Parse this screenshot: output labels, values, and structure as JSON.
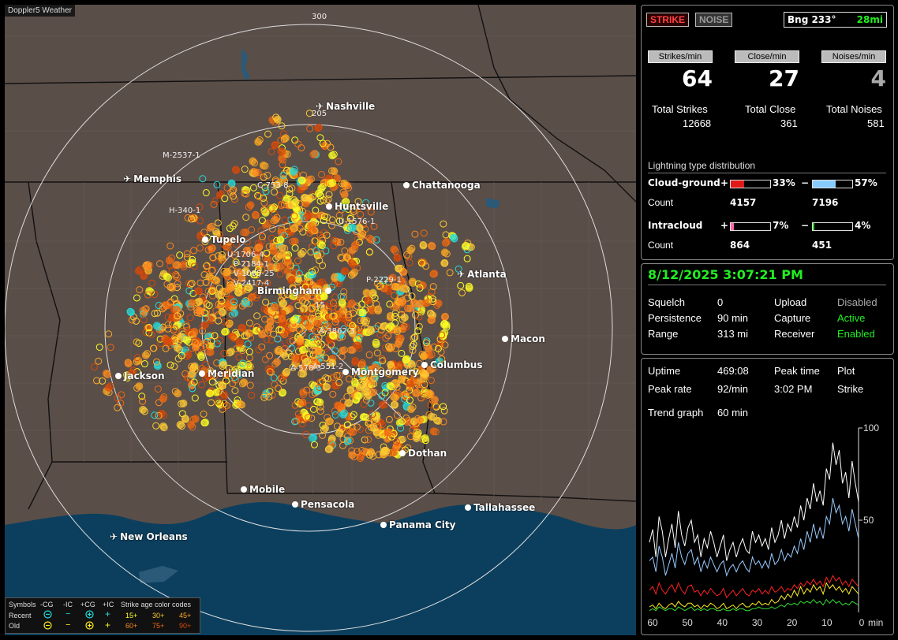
{
  "window_title": "Doppler5 Weather",
  "cities": [
    {
      "name": "Nashville",
      "type": "airport"
    },
    {
      "name": "Memphis",
      "type": "airport"
    },
    {
      "name": "Chattanooga",
      "type": "city"
    },
    {
      "name": "Huntsville",
      "type": "city"
    },
    {
      "name": "Tupelo",
      "type": "city"
    },
    {
      "name": "Atlanta",
      "type": "airport"
    },
    {
      "name": "Birmingham",
      "type": "city"
    },
    {
      "name": "Macon",
      "type": "city"
    },
    {
      "name": "Jackson",
      "type": "city"
    },
    {
      "name": "Meridian",
      "type": "city"
    },
    {
      "name": "Montgomery",
      "type": "city"
    },
    {
      "name": "Columbus",
      "type": "city"
    },
    {
      "name": "Dothan",
      "type": "city"
    },
    {
      "name": "Mobile",
      "type": "city"
    },
    {
      "name": "Pensacola",
      "type": "city"
    },
    {
      "name": "Tallahassee",
      "type": "city"
    },
    {
      "name": "Panama City",
      "type": "city"
    },
    {
      "name": "New Orleans",
      "type": "airport"
    }
  ],
  "ring_labels": [
    "300",
    "205",
    "15"
  ],
  "storm_labels": [
    "M-2537-1",
    "H-340-1",
    "C-753-8",
    "U-1576-1",
    "U-1706-4",
    "P-2184-1",
    "V-1085-25",
    "V-2417-4",
    "P-2229-1",
    "A-3862-3",
    "A-578-3",
    "A-551-2"
  ],
  "legend": {
    "symbols_label": "Symbols",
    "col_heads": [
      "-CG",
      "-IC",
      "+CG",
      "+IC"
    ],
    "age_label": "Strike age color codes",
    "recent_label": "Recent",
    "old_label": "Old",
    "recent_ages": [
      "15+",
      "30+",
      "45+"
    ],
    "old_ages": [
      "60+",
      "75+",
      "90+"
    ],
    "glyph_minus": "−",
    "glyph_plus": "+",
    "colors": {
      "c15": "#ffff22",
      "c30": "#ffcc33",
      "c45": "#ffaa22",
      "c60": "#ff8a1e",
      "c75": "#f06a10",
      "c90": "#d94a08",
      "recent_sym": "#22dddd",
      "old_sym": "#ffee22"
    }
  },
  "top": {
    "strike_btn": "STRIKE",
    "noise_btn": "NOISE",
    "bearing_label": "Bng 233°",
    "distance": "28mi",
    "strikes_head": "Strikes/min",
    "close_head": "Close/min",
    "noises_head": "Noises/min",
    "strikes_val": "64",
    "close_val": "27",
    "noises_val": "4",
    "total_strikes_label": "Total Strikes",
    "total_close_label": "Total Close",
    "total_noises_label": "Total Noises",
    "total_strikes": "12668",
    "total_close": "361",
    "total_noises": "581",
    "dist_title": "Lightning type distribution",
    "cg_label": "Cloud-ground",
    "ic_label": "Intracloud",
    "count_label": "Count",
    "plus": "+",
    "minus": "−",
    "cg_pos_pct": "33%",
    "cg_neg_pct": "57%",
    "cg_pos_count": "4157",
    "cg_neg_count": "7196",
    "ic_pos_pct": "7%",
    "ic_neg_pct": "4%",
    "ic_pos_count": "864",
    "ic_neg_count": "451",
    "cg_pos_fill": 0.33,
    "cg_neg_fill": 0.57,
    "ic_pos_fill": 0.07,
    "ic_neg_fill": 0.04
  },
  "status": {
    "datetime": "8/12/2025 3:07:21 PM",
    "squelch_label": "Squelch",
    "squelch": "0",
    "persist_label": "Persistence",
    "persist": "90 min",
    "range_label": "Range",
    "range": "313 mi",
    "upload_label": "Upload",
    "upload": "Disabled",
    "capture_label": "Capture",
    "capture": "Active",
    "receiver_label": "Receiver",
    "receiver": "Enabled"
  },
  "stats": {
    "uptime_label": "Uptime",
    "uptime": "469:08",
    "peaktime_label": "Peak time",
    "peaktime": "3:02 PM",
    "plot_label": "Plot",
    "plot": "Strike",
    "peakrate_label": "Peak rate",
    "peakrate": "92/min",
    "trend_label": "Trend graph",
    "trend": "60 min"
  },
  "chart_data": {
    "type": "line",
    "title": "",
    "xlabel": "min",
    "ylabel": "",
    "x_ticks": [
      "60",
      "50",
      "40",
      "30",
      "20",
      "10",
      "0"
    ],
    "y_ticks": [
      "100",
      "50"
    ],
    "xlim": [
      60,
      0
    ],
    "ylim": [
      0,
      100
    ],
    "series": [
      {
        "color": "#ffffff",
        "values": [
          38,
          45,
          30,
          52,
          44,
          30,
          40,
          48,
          35,
          55,
          42,
          36,
          46,
          50,
          38,
          42,
          30,
          40,
          35,
          44,
          38,
          30,
          36,
          42,
          28,
          34,
          38,
          30,
          36,
          40,
          34,
          32,
          44,
          38,
          42,
          36,
          40,
          34,
          46,
          38,
          42,
          50,
          40,
          48,
          44,
          52,
          46,
          58,
          50,
          62,
          56,
          70,
          60,
          66,
          58,
          78,
          72,
          92,
          80,
          88,
          70,
          76,
          62,
          82,
          70,
          60
        ]
      },
      {
        "color": "#99ccff",
        "values": [
          28,
          30,
          22,
          36,
          30,
          20,
          26,
          32,
          24,
          38,
          30,
          26,
          32,
          34,
          26,
          30,
          22,
          28,
          24,
          30,
          26,
          22,
          26,
          28,
          20,
          24,
          26,
          22,
          26,
          28,
          24,
          22,
          30,
          26,
          28,
          24,
          28,
          24,
          32,
          26,
          28,
          34,
          28,
          32,
          30,
          36,
          32,
          40,
          34,
          44,
          38,
          48,
          40,
          46,
          40,
          52,
          48,
          62,
          54,
          58,
          48,
          52,
          44,
          56,
          48,
          40
        ]
      },
      {
        "color": "#ff2222",
        "values": [
          12,
          14,
          10,
          16,
          12,
          10,
          13,
          15,
          11,
          16,
          12,
          10,
          14,
          15,
          11,
          12,
          9,
          12,
          10,
          13,
          11,
          9,
          10,
          13,
          8,
          10,
          12,
          9,
          11,
          13,
          10,
          9,
          12,
          11,
          13,
          10,
          12,
          10,
          14,
          11,
          12,
          14,
          11,
          13,
          12,
          15,
          13,
          16,
          14,
          17,
          15,
          18,
          15,
          17,
          14,
          19,
          16,
          20,
          17,
          19,
          15,
          17,
          14,
          18,
          16,
          14
        ]
      },
      {
        "color": "#ffee22",
        "values": [
          3,
          4,
          2,
          5,
          3,
          2,
          4,
          5,
          3,
          6,
          4,
          3,
          5,
          5,
          3,
          4,
          2,
          4,
          3,
          5,
          4,
          2,
          3,
          5,
          2,
          3,
          4,
          2,
          4,
          5,
          3,
          3,
          5,
          4,
          6,
          4,
          5,
          4,
          7,
          5,
          6,
          9,
          7,
          10,
          8,
          12,
          9,
          14,
          10,
          13,
          11,
          15,
          12,
          14,
          10,
          16,
          13,
          15,
          12,
          14,
          11,
          13,
          10,
          14,
          12,
          10
        ]
      },
      {
        "color": "#33dd33",
        "values": [
          1,
          2,
          1,
          3,
          2,
          1,
          2,
          2,
          1,
          3,
          2,
          1,
          2,
          3,
          1,
          2,
          1,
          2,
          1,
          2,
          2,
          1,
          1,
          2,
          1,
          1,
          2,
          1,
          2,
          2,
          1,
          1,
          2,
          2,
          3,
          2,
          2,
          2,
          3,
          2,
          3,
          4,
          3,
          5,
          4,
          5,
          4,
          6,
          5,
          6,
          5,
          7,
          5,
          6,
          4,
          7,
          5,
          7,
          5,
          6,
          4,
          5,
          4,
          6,
          5,
          4
        ]
      }
    ]
  }
}
